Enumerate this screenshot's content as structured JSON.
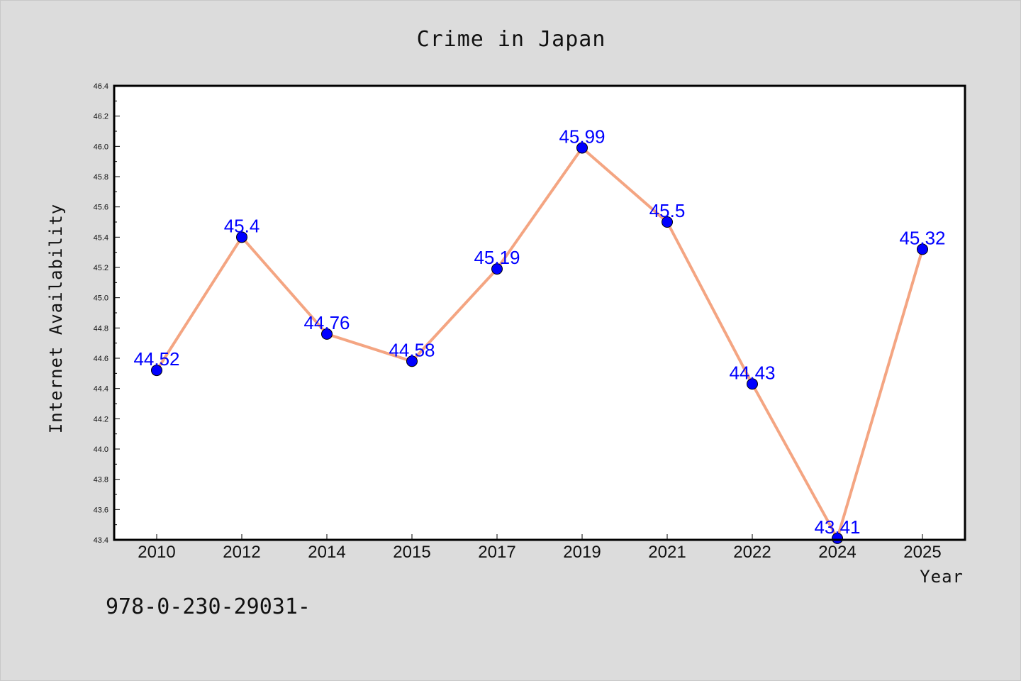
{
  "chart_data": {
    "type": "line",
    "title": "Crime in Japan",
    "xlabel": "Year",
    "ylabel": "Internet Availability",
    "categories": [
      "2010",
      "2012",
      "2014",
      "2015",
      "2017",
      "2019",
      "2021",
      "2022",
      "2024",
      "2025"
    ],
    "series": [
      {
        "values": [
          44.52,
          45.4,
          44.76,
          44.58,
          45.19,
          45.99,
          45.5,
          44.43,
          43.41,
          45.32
        ],
        "labels": [
          "44.52",
          "45.4",
          "44.76",
          "44.58",
          "45.19",
          "45.99",
          "45.5",
          "44.43",
          "43.41",
          "45.32"
        ],
        "line_color": "#f4a582",
        "marker_color": "#0000ff",
        "label_color": "#0000ff"
      }
    ],
    "ylim": [
      43.4,
      46.4
    ],
    "yticks": [
      "43.4",
      "43.6",
      "43.8",
      "44.0",
      "44.2",
      "44.4",
      "44.6",
      "44.8",
      "45.0",
      "45.2",
      "45.4",
      "45.6",
      "45.8",
      "46.0",
      "46.2",
      "46.4"
    ],
    "grid": false,
    "legend": "none",
    "background_color": "#dcdcdc",
    "plot_background_color": "#ffffff"
  },
  "footnote": "978-0-230-29031-"
}
